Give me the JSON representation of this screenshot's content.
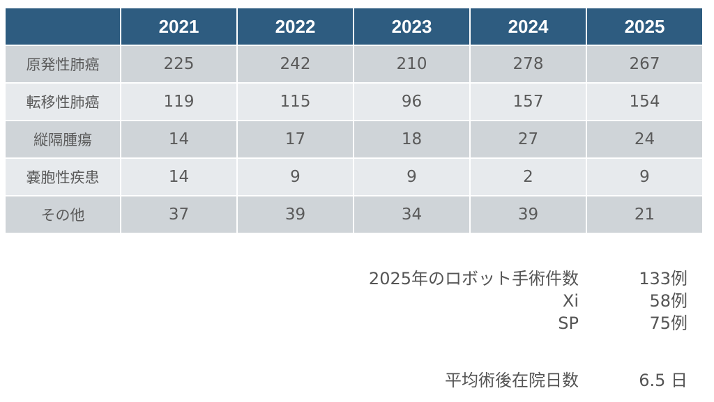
{
  "table": {
    "header_corner": "",
    "years": [
      "2021",
      "2022",
      "2023",
      "2024",
      "2025"
    ],
    "rows": [
      {
        "label": "原発性肺癌",
        "values": [
          "225",
          "242",
          "210",
          "278",
          "267"
        ]
      },
      {
        "label": "転移性肺癌",
        "values": [
          "119",
          "115",
          "96",
          "157",
          "154"
        ]
      },
      {
        "label": "縦隔腫瘍",
        "values": [
          "14",
          "17",
          "18",
          "27",
          "24"
        ]
      },
      {
        "label": "嚢胞性疾患",
        "values": [
          "14",
          "9",
          "9",
          "2",
          "9"
        ]
      },
      {
        "label": "その他",
        "values": [
          "37",
          "39",
          "34",
          "39",
          "21"
        ]
      }
    ]
  },
  "summary": {
    "robot_label": "2025年のロボット手術件数",
    "robot_value": "133例",
    "xi_label": "Xi",
    "xi_value": "58例",
    "sp_label": "SP",
    "sp_value": "75例",
    "stay_label": "平均術後在院日数",
    "stay_value": "6.5 日"
  },
  "colors": {
    "header_bg": "#2e5c80",
    "row_dark": "#cfd4d8",
    "row_light": "#e7eaed"
  }
}
